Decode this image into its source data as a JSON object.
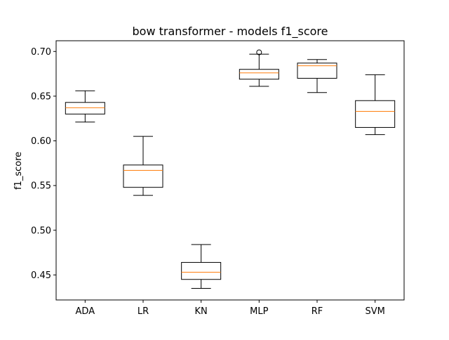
{
  "chart_data": {
    "type": "box",
    "title": "bow transformer - models f1_score",
    "xlabel": "",
    "ylabel": "f1_score",
    "ylim": [
      0.422,
      0.712
    ],
    "yticks": [
      0.45,
      0.5,
      0.55,
      0.6,
      0.65,
      0.7
    ],
    "ytick_labels": [
      "0.45",
      "0.50",
      "0.55",
      "0.60",
      "0.65",
      "0.70"
    ],
    "grid": false,
    "categories": [
      "ADA",
      "LR",
      "KN",
      "MLP",
      "RF",
      "SVM"
    ],
    "boxes": [
      {
        "label": "ADA",
        "whisker_low": 0.621,
        "q1": 0.63,
        "median": 0.637,
        "q3": 0.643,
        "whisker_high": 0.656,
        "outliers": []
      },
      {
        "label": "LR",
        "whisker_low": 0.539,
        "q1": 0.548,
        "median": 0.567,
        "q3": 0.573,
        "whisker_high": 0.605,
        "outliers": []
      },
      {
        "label": "KN",
        "whisker_low": 0.435,
        "q1": 0.445,
        "median": 0.453,
        "q3": 0.464,
        "whisker_high": 0.484,
        "outliers": []
      },
      {
        "label": "MLP",
        "whisker_low": 0.661,
        "q1": 0.669,
        "median": 0.676,
        "q3": 0.68,
        "whisker_high": 0.697,
        "outliers": [
          0.699
        ]
      },
      {
        "label": "RF",
        "whisker_low": 0.654,
        "q1": 0.67,
        "median": 0.684,
        "q3": 0.687,
        "whisker_high": 0.691,
        "outliers": []
      },
      {
        "label": "SVM",
        "whisker_low": 0.607,
        "q1": 0.615,
        "median": 0.633,
        "q3": 0.645,
        "whisker_high": 0.674,
        "outliers": []
      }
    ],
    "colors": {
      "box": "#000000",
      "median": "#ff7f0e",
      "outlier": "#000000",
      "background": "#ffffff"
    }
  }
}
